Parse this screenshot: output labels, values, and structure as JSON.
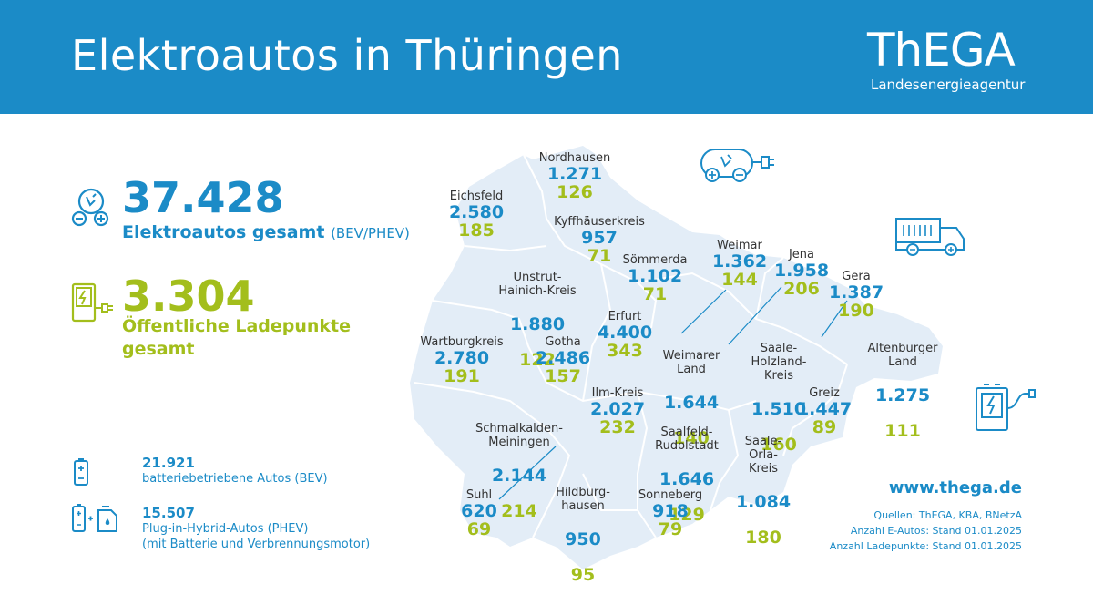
{
  "header": {
    "title": "Elektroautos in Thüringen",
    "logo": "ThEGA",
    "logo_sub": "Landesenergieagentur"
  },
  "totals": {
    "ev_total": "37.428",
    "ev_label": "Elektroautos gesamt",
    "ev_label_small": "(BEV/PHEV)",
    "charge_total": "3.304",
    "charge_label": "Öffentliche Ladepunkte gesamt"
  },
  "stats": [
    {
      "value": "21.921",
      "label": "batteriebetriebene Autos (BEV)",
      "sub": ""
    },
    {
      "value": "15.507",
      "label": "Plug-in-Hybrid-Autos (PHEV)",
      "sub": "(mit Batterie und Verbrennungsmotor)"
    }
  ],
  "districts": [
    {
      "name": "Nordhausen",
      "ev": "1.271",
      "charge": "126"
    },
    {
      "name": "Eichsfeld",
      "ev": "2.580",
      "charge": "185"
    },
    {
      "name": "Kyffhäuserkreis",
      "ev": "957",
      "charge": "71"
    },
    {
      "name": "Unstrut-\nHainich-Kreis",
      "ev": "1.880",
      "charge": "122"
    },
    {
      "name": "Sömmerda",
      "ev": "1.102",
      "charge": "71"
    },
    {
      "name": "Weimar",
      "ev": "1.362",
      "charge": "144"
    },
    {
      "name": "Jena",
      "ev": "1.958",
      "charge": "206"
    },
    {
      "name": "Gera",
      "ev": "1.387",
      "charge": "190"
    },
    {
      "name": "Erfurt",
      "ev": "4.400",
      "charge": "343"
    },
    {
      "name": "Wartburgkreis",
      "ev": "2.780",
      "charge": "191"
    },
    {
      "name": "Gotha",
      "ev": "2.486",
      "charge": "157"
    },
    {
      "name": "Weimarer\nLand",
      "ev": "1.644",
      "charge": "140"
    },
    {
      "name": "Saale-\nHolzland-\nKreis",
      "ev": "1.510",
      "charge": "160"
    },
    {
      "name": "Altenburger\nLand",
      "ev": "1.275",
      "charge": "111"
    },
    {
      "name": "Ilm-Kreis",
      "ev": "2.027",
      "charge": "232"
    },
    {
      "name": "Schmalkalden-\nMeiningen",
      "ev": "2.144",
      "charge": "214"
    },
    {
      "name": "Greiz",
      "ev": "1.447",
      "charge": "89"
    },
    {
      "name": "Saalfeld-\nRudolstadt",
      "ev": "1.646",
      "charge": "129"
    },
    {
      "name": "Saale-\nOrla-\nKreis",
      "ev": "1.084",
      "charge": "180"
    },
    {
      "name": "Suhl",
      "ev": "620",
      "charge": "69"
    },
    {
      "name": "Hildburg-\nhausen",
      "ev": "950",
      "charge": "95"
    },
    {
      "name": "Sonneberg",
      "ev": "918",
      "charge": "79"
    }
  ],
  "footer": {
    "website": "www.thega.de",
    "sources": [
      "Quellen: ThEGA, KBA, BNetzA",
      "Anzahl E-Autos: Stand 01.01.2025",
      "Anzahl Ladepunkte: Stand 01.01.2025"
    ]
  },
  "colors": {
    "blue": "#1b8bc7",
    "green": "#a3be1c",
    "map": "#e3edf7"
  },
  "icons": [
    "ev-car-icon",
    "charging-station-icon",
    "battery-icon",
    "battery-fuel-icon",
    "car-plug-icon",
    "truck-ev-icon"
  ]
}
